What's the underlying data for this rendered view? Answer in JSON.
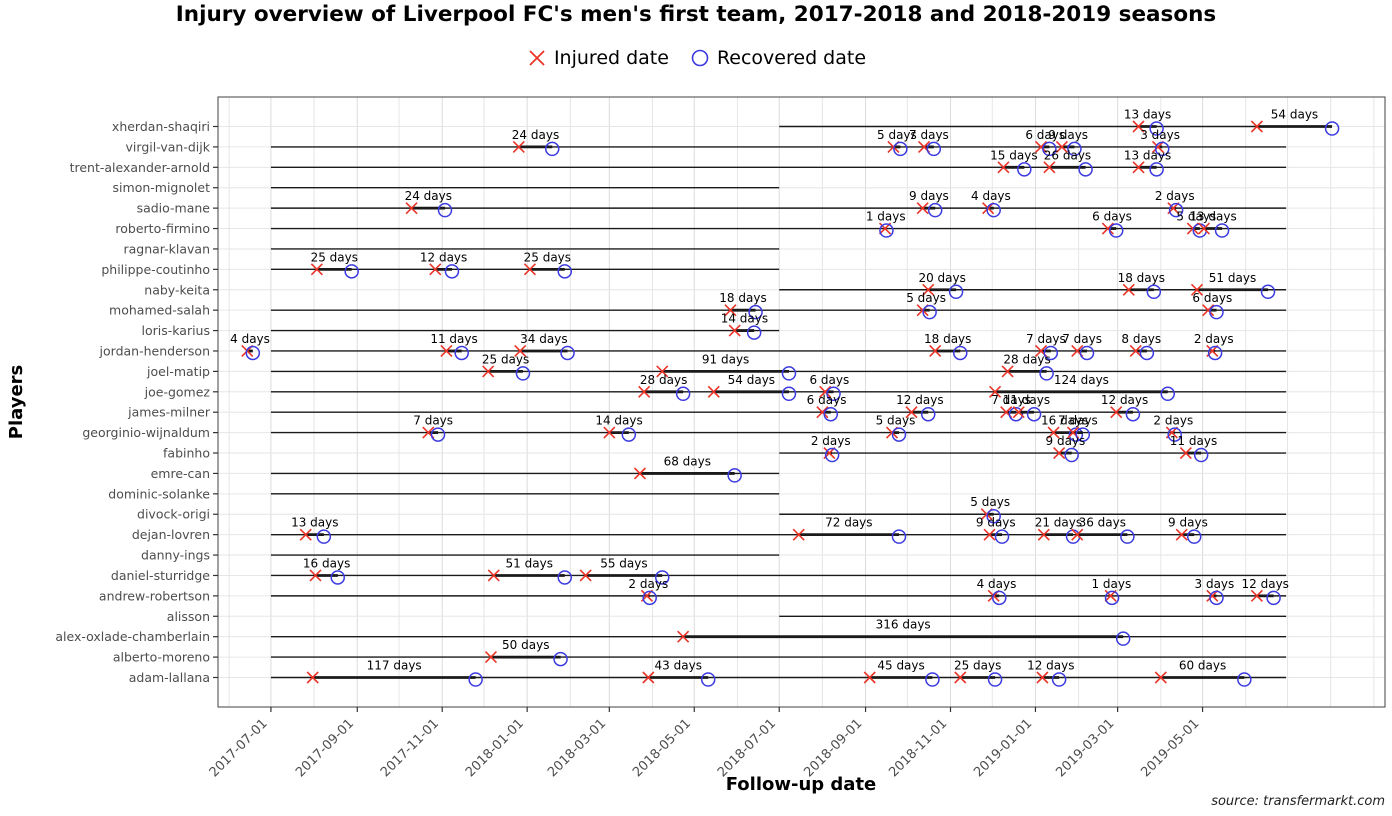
{
  "chart_data": {
    "type": "timeline",
    "title": "Injury overview of Liverpool FC's men's first team, 2017-2018 and 2018-2019 seasons",
    "legend": [
      {
        "symbol": "x",
        "label": "Injured date",
        "color": "#ea3428"
      },
      {
        "symbol": "circle",
        "label": "Recovered date",
        "color": "#3a3ae0"
      }
    ],
    "xlabel": "Follow-up date",
    "ylabel": "Players",
    "source": "source: transfermarkt.com",
    "axis": {
      "start": "2017-05-24",
      "end": "2019-09-09",
      "ticks": [
        "2017-07-01",
        "2017-09-01",
        "2017-11-01",
        "2018-01-01",
        "2018-03-01",
        "2018-05-01",
        "2018-07-01",
        "2018-09-01",
        "2018-11-01",
        "2019-01-01",
        "2019-03-01",
        "2019-05-01"
      ],
      "grid": "monthly"
    },
    "colors": {
      "line": "#1a1a1a",
      "grid": "#e6e6e6",
      "tick_text": "#4d4d4d",
      "injured": "#ea3428",
      "recovered": "#3a3ae0",
      "panel_border": "#404040"
    },
    "players": [
      {
        "name": "xherdan-shaqiri",
        "follow_up": [
          {
            "start": "2018-07-01",
            "end": "2019-06-30"
          }
        ],
        "injuries": [
          {
            "date": "2019-03-16",
            "days": 13,
            "label": "13 days"
          },
          {
            "date": "2019-06-09",
            "days": 54,
            "label": "54 days"
          }
        ]
      },
      {
        "name": "virgil-van-dijk",
        "follow_up": [
          {
            "start": "2017-07-01",
            "end": "2019-06-30"
          }
        ],
        "injuries": [
          {
            "date": "2017-12-26",
            "days": 24,
            "label": "24 days"
          },
          {
            "date": "2018-09-21",
            "days": 5,
            "label": "5 days"
          },
          {
            "date": "2018-10-13",
            "days": 7,
            "label": "7 days"
          },
          {
            "date": "2019-01-05",
            "days": 6,
            "label": "6 days"
          },
          {
            "date": "2019-01-20",
            "days": 9,
            "label": "9 days"
          },
          {
            "date": "2019-03-30",
            "days": 3,
            "label": "3 days"
          }
        ]
      },
      {
        "name": "trent-alexander-arnold",
        "follow_up": [
          {
            "start": "2017-07-01",
            "end": "2019-06-30"
          }
        ],
        "injuries": [
          {
            "date": "2018-12-09",
            "days": 15,
            "label": "15 days"
          },
          {
            "date": "2019-01-11",
            "days": 26,
            "label": "26 days"
          },
          {
            "date": "2019-03-16",
            "days": 13,
            "label": "13 days"
          }
        ]
      },
      {
        "name": "simon-mignolet",
        "follow_up": [
          {
            "start": "2017-07-01",
            "end": "2018-07-01"
          }
        ],
        "injuries": []
      },
      {
        "name": "sadio-mane",
        "follow_up": [
          {
            "start": "2017-07-01",
            "end": "2019-06-30"
          }
        ],
        "injuries": [
          {
            "date": "2017-10-10",
            "days": 24,
            "label": "24 days"
          },
          {
            "date": "2018-10-12",
            "days": 9,
            "label": "9 days"
          },
          {
            "date": "2018-11-28",
            "days": 4,
            "label": "4 days"
          },
          {
            "date": "2019-04-10",
            "days": 2,
            "label": "2 days"
          }
        ]
      },
      {
        "name": "roberto-firmino",
        "follow_up": [
          {
            "start": "2017-07-01",
            "end": "2019-06-30"
          }
        ],
        "injuries": [
          {
            "date": "2018-09-15",
            "days": 1,
            "label": "1 days"
          },
          {
            "date": "2019-02-22",
            "days": 6,
            "label": "6 days"
          },
          {
            "date": "2019-04-24",
            "days": 5,
            "label": "5 days"
          },
          {
            "date": "2019-05-02",
            "days": 13,
            "label": "13 days"
          }
        ]
      },
      {
        "name": "ragnar-klavan",
        "follow_up": [
          {
            "start": "2017-07-01",
            "end": "2018-07-01"
          }
        ],
        "injuries": []
      },
      {
        "name": "philippe-coutinho",
        "follow_up": [
          {
            "start": "2017-07-01",
            "end": "2018-07-01"
          }
        ],
        "injuries": [
          {
            "date": "2017-08-03",
            "days": 25,
            "label": "25 days"
          },
          {
            "date": "2017-10-27",
            "days": 12,
            "label": "12 days"
          },
          {
            "date": "2018-01-03",
            "days": 25,
            "label": "25 days"
          }
        ]
      },
      {
        "name": "naby-keita",
        "follow_up": [
          {
            "start": "2018-07-01",
            "end": "2019-06-30"
          }
        ],
        "injuries": [
          {
            "date": "2018-10-16",
            "days": 20,
            "label": "20 days"
          },
          {
            "date": "2019-03-09",
            "days": 18,
            "label": "18 days"
          },
          {
            "date": "2019-04-27",
            "days": 51,
            "label": "51 days"
          }
        ]
      },
      {
        "name": "mohamed-salah",
        "follow_up": [
          {
            "start": "2017-07-01",
            "end": "2019-06-30"
          }
        ],
        "injuries": [
          {
            "date": "2018-05-27",
            "days": 18,
            "label": "18 days"
          },
          {
            "date": "2018-10-12",
            "days": 5,
            "label": "5 days"
          },
          {
            "date": "2019-05-05",
            "days": 6,
            "label": "6 days"
          }
        ]
      },
      {
        "name": "loris-karius",
        "follow_up": [
          {
            "start": "2017-07-01",
            "end": "2018-07-01"
          }
        ],
        "injuries": [
          {
            "date": "2018-05-30",
            "days": 14,
            "label": "14 days"
          }
        ]
      },
      {
        "name": "jordan-henderson",
        "follow_up": [
          {
            "start": "2017-07-01",
            "end": "2019-06-30"
          }
        ],
        "injuries": [
          {
            "date": "2017-06-14",
            "days": 4,
            "label": "4 days"
          },
          {
            "date": "2017-11-04",
            "days": 11,
            "label": "11 days"
          },
          {
            "date": "2017-12-27",
            "days": 34,
            "label": "34 days"
          },
          {
            "date": "2018-10-21",
            "days": 18,
            "label": "18 days"
          },
          {
            "date": "2019-01-05",
            "days": 7,
            "label": "7 days"
          },
          {
            "date": "2019-01-31",
            "days": 7,
            "label": "7 days"
          },
          {
            "date": "2019-03-14",
            "days": 8,
            "label": "8 days"
          },
          {
            "date": "2019-05-08",
            "days": 2,
            "label": "2 days"
          }
        ]
      },
      {
        "name": "joel-matip",
        "follow_up": [
          {
            "start": "2017-07-01",
            "end": "2019-06-30"
          }
        ],
        "injuries": [
          {
            "date": "2017-12-04",
            "days": 25,
            "label": "25 days"
          },
          {
            "date": "2018-04-08",
            "days": 91,
            "label": "91 days"
          },
          {
            "date": "2018-12-12",
            "days": 28,
            "label": "28 days"
          }
        ]
      },
      {
        "name": "joe-gomez",
        "follow_up": [
          {
            "start": "2017-07-01",
            "end": "2019-06-30"
          }
        ],
        "injuries": [
          {
            "date": "2018-03-26",
            "days": 28,
            "label": "28 days"
          },
          {
            "date": "2018-05-15",
            "days": 54,
            "label": "54 days"
          },
          {
            "date": "2018-08-03",
            "days": 6,
            "label": "6 days"
          },
          {
            "date": "2018-12-03",
            "days": 124,
            "label": "124 days"
          }
        ]
      },
      {
        "name": "james-milner",
        "follow_up": [
          {
            "start": "2017-07-01",
            "end": "2019-06-30"
          }
        ],
        "injuries": [
          {
            "date": "2018-08-01",
            "days": 6,
            "label": "6 days"
          },
          {
            "date": "2018-10-04",
            "days": 12,
            "label": "12 days"
          },
          {
            "date": "2018-12-11",
            "days": 7,
            "label": "7 days"
          },
          {
            "date": "2018-12-20",
            "days": 11,
            "label": "11 days"
          },
          {
            "date": "2019-02-28",
            "days": 12,
            "label": "12 days"
          }
        ]
      },
      {
        "name": "georginio-wijnaldum",
        "follow_up": [
          {
            "start": "2017-07-01",
            "end": "2019-06-30"
          }
        ],
        "injuries": [
          {
            "date": "2017-10-22",
            "days": 7,
            "label": "7 days"
          },
          {
            "date": "2018-03-01",
            "days": 14,
            "label": "14 days"
          },
          {
            "date": "2018-09-20",
            "days": 5,
            "label": "5 days"
          },
          {
            "date": "2019-01-14",
            "days": 16,
            "label": "16 days"
          },
          {
            "date": "2019-01-28",
            "days": 7,
            "label": "7 days"
          },
          {
            "date": "2019-04-09",
            "days": 2,
            "label": "2 days"
          }
        ]
      },
      {
        "name": "fabinho",
        "follow_up": [
          {
            "start": "2018-07-01",
            "end": "2019-06-30"
          }
        ],
        "injuries": [
          {
            "date": "2018-08-06",
            "days": 2,
            "label": "2 days"
          },
          {
            "date": "2019-01-18",
            "days": 9,
            "label": "9 days"
          },
          {
            "date": "2019-04-19",
            "days": 11,
            "label": "11 days"
          }
        ]
      },
      {
        "name": "emre-can",
        "follow_up": [
          {
            "start": "2017-07-01",
            "end": "2018-07-01"
          }
        ],
        "injuries": [
          {
            "date": "2018-03-23",
            "days": 68,
            "label": "68 days"
          }
        ]
      },
      {
        "name": "dominic-solanke",
        "follow_up": [
          {
            "start": "2017-07-01",
            "end": "2018-07-01"
          }
        ],
        "injuries": []
      },
      {
        "name": "divock-origi",
        "follow_up": [
          {
            "start": "2018-07-01",
            "end": "2019-06-30"
          }
        ],
        "injuries": [
          {
            "date": "2018-11-27",
            "days": 5,
            "label": "5 days"
          }
        ]
      },
      {
        "name": "dejan-lovren",
        "follow_up": [
          {
            "start": "2017-07-01",
            "end": "2019-06-30"
          }
        ],
        "injuries": [
          {
            "date": "2017-07-26",
            "days": 13,
            "label": "13 days"
          },
          {
            "date": "2018-07-15",
            "days": 72,
            "label": "72 days"
          },
          {
            "date": "2018-11-29",
            "days": 9,
            "label": "9 days"
          },
          {
            "date": "2019-01-07",
            "days": 21,
            "label": "21 days"
          },
          {
            "date": "2019-01-31",
            "days": 36,
            "label": "36 days"
          },
          {
            "date": "2019-04-16",
            "days": 9,
            "label": "9 days"
          }
        ]
      },
      {
        "name": "danny-ings",
        "follow_up": [
          {
            "start": "2017-07-01",
            "end": "2018-07-01"
          }
        ],
        "injuries": []
      },
      {
        "name": "daniel-sturridge",
        "follow_up": [
          {
            "start": "2017-07-01",
            "end": "2019-06-30"
          }
        ],
        "injuries": [
          {
            "date": "2017-08-02",
            "days": 16,
            "label": "16 days"
          },
          {
            "date": "2017-12-08",
            "days": 51,
            "label": "51 days"
          },
          {
            "date": "2018-02-12",
            "days": 55,
            "label": "55 days"
          }
        ]
      },
      {
        "name": "andrew-robertson",
        "follow_up": [
          {
            "start": "2017-07-01",
            "end": "2019-06-30"
          }
        ],
        "injuries": [
          {
            "date": "2018-03-28",
            "days": 2,
            "label": "2 days"
          },
          {
            "date": "2018-12-02",
            "days": 4,
            "label": "4 days"
          },
          {
            "date": "2019-02-24",
            "days": 1,
            "label": "1 days"
          },
          {
            "date": "2019-05-08",
            "days": 3,
            "label": "3 days"
          },
          {
            "date": "2019-06-09",
            "days": 12,
            "label": "12 days"
          }
        ]
      },
      {
        "name": "alisson",
        "follow_up": [
          {
            "start": "2018-07-01",
            "end": "2019-06-30"
          }
        ],
        "injuries": []
      },
      {
        "name": "alex-oxlade-chamberlain",
        "follow_up": [
          {
            "start": "2017-07-01",
            "end": "2019-06-30"
          }
        ],
        "injuries": [
          {
            "date": "2018-04-23",
            "days": 316,
            "label": "316 days"
          }
        ]
      },
      {
        "name": "alberto-moreno",
        "follow_up": [
          {
            "start": "2017-07-01",
            "end": "2019-06-30"
          }
        ],
        "injuries": [
          {
            "date": "2017-12-06",
            "days": 50,
            "label": "50 days"
          }
        ]
      },
      {
        "name": "adam-lallana",
        "follow_up": [
          {
            "start": "2017-07-01",
            "end": "2019-06-30"
          }
        ],
        "injuries": [
          {
            "date": "2017-07-31",
            "days": 117,
            "label": "117 days"
          },
          {
            "date": "2018-03-29",
            "days": 43,
            "label": "43 days"
          },
          {
            "date": "2018-09-04",
            "days": 45,
            "label": "45 days"
          },
          {
            "date": "2018-11-08",
            "days": 25,
            "label": "25 days"
          },
          {
            "date": "2019-01-06",
            "days": 12,
            "label": "12 days"
          },
          {
            "date": "2019-04-01",
            "days": 60,
            "label": "60 days"
          }
        ]
      }
    ]
  }
}
